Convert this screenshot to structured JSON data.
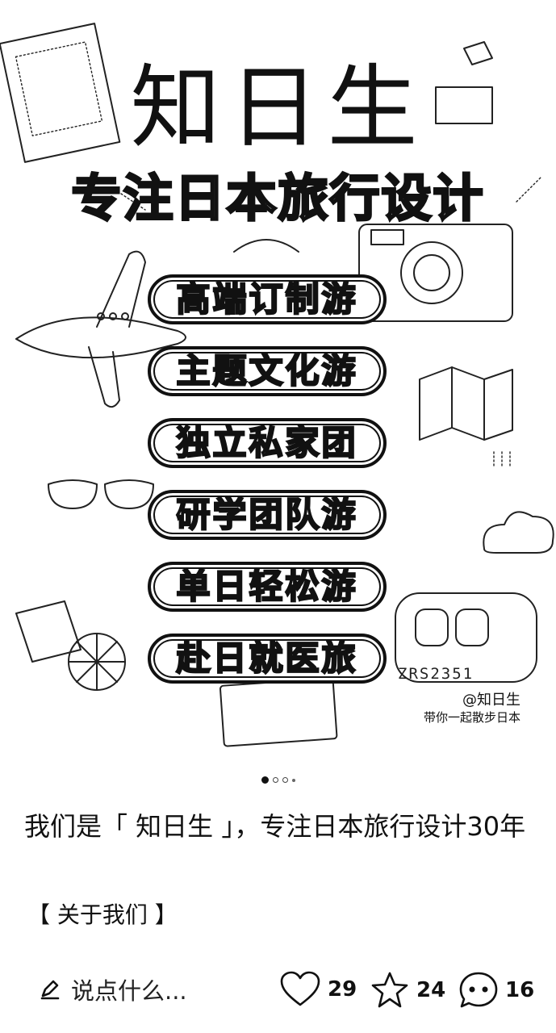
{
  "hero": {
    "title": "知日生",
    "slogan": "专注日本旅行设计",
    "services": [
      "高端订制游",
      "主题文化游",
      "独立私家团",
      "研学团队游",
      "单日轻松游",
      "赴日就医旅"
    ],
    "plate_text": "ZRS2351",
    "watermark_handle": "@知日生",
    "watermark_tagline": "带你一起散步日本"
  },
  "carousel": {
    "total": 4,
    "active_index": 0
  },
  "post": {
    "caption": "我们是「 知日生 」，专注日本旅行设计30年",
    "about_link": "【 关于我们 】"
  },
  "actions": {
    "comment_placeholder": "说点什么...",
    "comment_icon": "pencil-icon",
    "likes": "29",
    "like_icon": "heart-icon",
    "favorites": "24",
    "favorite_icon": "star-icon",
    "comments": "16",
    "comments_icon": "speech-bubble-icon"
  }
}
